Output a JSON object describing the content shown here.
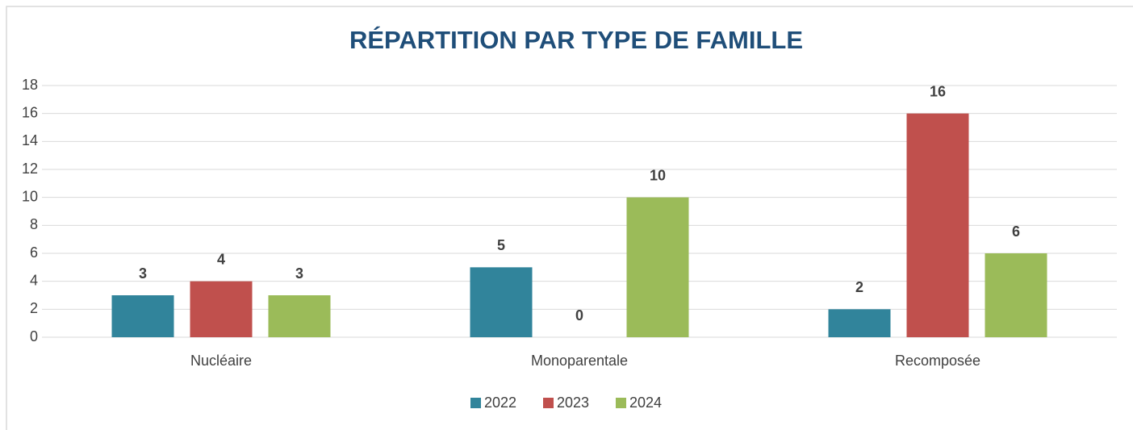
{
  "chart_data": {
    "type": "bar",
    "title": "RÉPARTITION PAR TYPE DE FAMILLE",
    "categories": [
      "Nucléaire",
      "Monoparentale",
      "Recomposée"
    ],
    "series": [
      {
        "name": "2022",
        "color": "#31849b",
        "values": [
          3,
          5,
          2
        ]
      },
      {
        "name": "2023",
        "color": "#c0504d",
        "values": [
          4,
          0,
          16
        ]
      },
      {
        "name": "2024",
        "color": "#9bbb59",
        "values": [
          3,
          10,
          6
        ]
      }
    ],
    "ylim": [
      0,
      18
    ],
    "yticks": [
      0,
      2,
      4,
      6,
      8,
      10,
      12,
      14,
      16,
      18
    ],
    "grid": true,
    "legend": "bottom"
  }
}
